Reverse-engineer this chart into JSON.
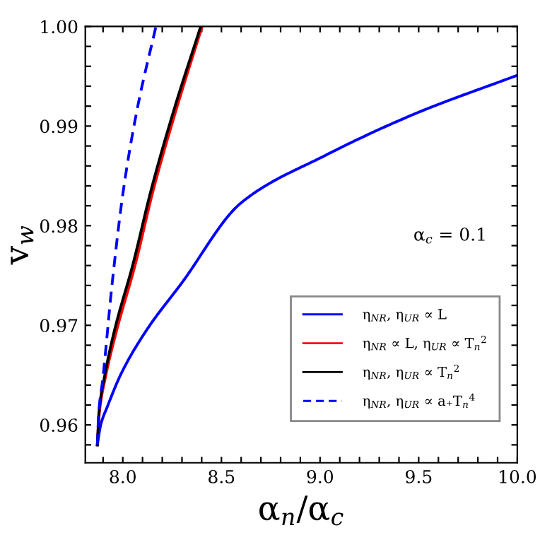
{
  "chart_data": {
    "type": "line",
    "xlabel": "α$_{n}$/α$_{c}$",
    "ylabel": "v$_{w}$",
    "annotations": [
      "α$_{c}$ = 0.1"
    ],
    "series": [
      {
        "name": "η$_{NR}$, η$_{UR}$ ∝ L",
        "color": "#0000ff",
        "line_style": "solid",
        "x": [
          7.871,
          7.888,
          7.923,
          7.993,
          8.12,
          8.297,
          8.6,
          9.021,
          9.489,
          10.0
        ],
        "values": [
          0.958,
          0.96,
          0.9619,
          0.9652,
          0.9695,
          0.9742,
          0.9823,
          0.987,
          0.9913,
          0.9951
        ]
      },
      {
        "name": "η$_{NR}$ ∝ L, η$_{UR}$ ∝ T$_{n}$$^{2}$",
        "color": "#ff0000",
        "line_style": "solid",
        "x": [
          7.871,
          7.881,
          7.911,
          7.969,
          8.063,
          8.156,
          8.273,
          8.402
        ],
        "values": [
          0.958,
          0.9612,
          0.9647,
          0.9695,
          0.9761,
          0.9837,
          0.9918,
          1.0
        ]
      },
      {
        "name": "η$_{NR}$, η$_{UR}$ ∝ T$_{n}$$^{2}$",
        "color": "#000000",
        "line_style": "solid",
        "x": [
          7.871,
          7.879,
          7.906,
          7.958,
          8.051,
          8.145,
          8.262,
          8.395
        ],
        "values": [
          0.958,
          0.9612,
          0.9647,
          0.9695,
          0.9761,
          0.9837,
          0.9918,
          1.0
        ]
      },
      {
        "name": "η$_{NR}$, η$_{UR}$ ∝ a₊T$_{n}$$^{4}$",
        "color": "#0000ff",
        "line_style": "dashed",
        "x": [
          7.871,
          7.878,
          7.899,
          7.946,
          8.004,
          8.074,
          8.168
        ],
        "values": [
          0.958,
          0.9612,
          0.9647,
          0.9742,
          0.9837,
          0.9918,
          1.0
        ]
      }
    ],
    "xlim": [
      7.81,
      10.0
    ],
    "ylim": [
      0.9562,
      1.0
    ],
    "xticks": [
      {
        "value": 7.9,
        "label": null
      },
      {
        "value": 8.0,
        "label": "8.0"
      },
      {
        "value": 8.1,
        "label": null
      },
      {
        "value": 8.2,
        "label": null
      },
      {
        "value": 8.3,
        "label": null
      },
      {
        "value": 8.4,
        "label": null
      },
      8.5,
      {
        "value": 8.6,
        "label": null
      },
      {
        "value": 8.7,
        "label": null
      },
      {
        "value": 8.8,
        "label": null
      },
      {
        "value": 8.9,
        "label": null
      },
      {
        "value": 9.0,
        "label": "9.0"
      },
      {
        "value": 9.1,
        "label": null
      },
      {
        "value": 9.2,
        "label": null
      },
      {
        "value": 9.3,
        "label": null
      },
      {
        "value": 9.4,
        "label": null
      },
      9.5,
      {
        "value": 9.6,
        "label": null
      },
      {
        "value": 9.7,
        "label": null
      },
      {
        "value": 9.8,
        "label": null
      },
      {
        "value": 9.9,
        "label": null
      },
      {
        "value": 10.0,
        "label": "10.0"
      }
    ],
    "yticks": [
      {
        "value": 0.958,
        "label": null
      },
      {
        "value": 0.96,
        "label": "0.96"
      },
      {
        "value": 0.962,
        "label": null
      },
      {
        "value": 0.964,
        "label": null
      },
      {
        "value": 0.966,
        "label": null
      },
      {
        "value": 0.968,
        "label": null
      },
      {
        "value": 0.97,
        "label": "0.97"
      },
      {
        "value": 0.972,
        "label": null
      },
      {
        "value": 0.974,
        "label": null
      },
      {
        "value": 0.976,
        "label": null
      },
      {
        "value": 0.978,
        "label": null
      },
      {
        "value": 0.98,
        "label": "0.98"
      },
      {
        "value": 0.982,
        "label": null
      },
      {
        "value": 0.984,
        "label": null
      },
      {
        "value": 0.986,
        "label": null
      },
      {
        "value": 0.988,
        "label": null
      },
      {
        "value": 0.99,
        "label": "0.99"
      },
      {
        "value": 0.992,
        "label": null
      },
      {
        "value": 0.994,
        "label": null
      },
      {
        "value": 0.996,
        "label": null
      },
      {
        "value": 0.998,
        "label": null
      },
      {
        "value": 1.0,
        "label": "1.00"
      }
    ],
    "grid": false,
    "legend": "bottom right"
  }
}
